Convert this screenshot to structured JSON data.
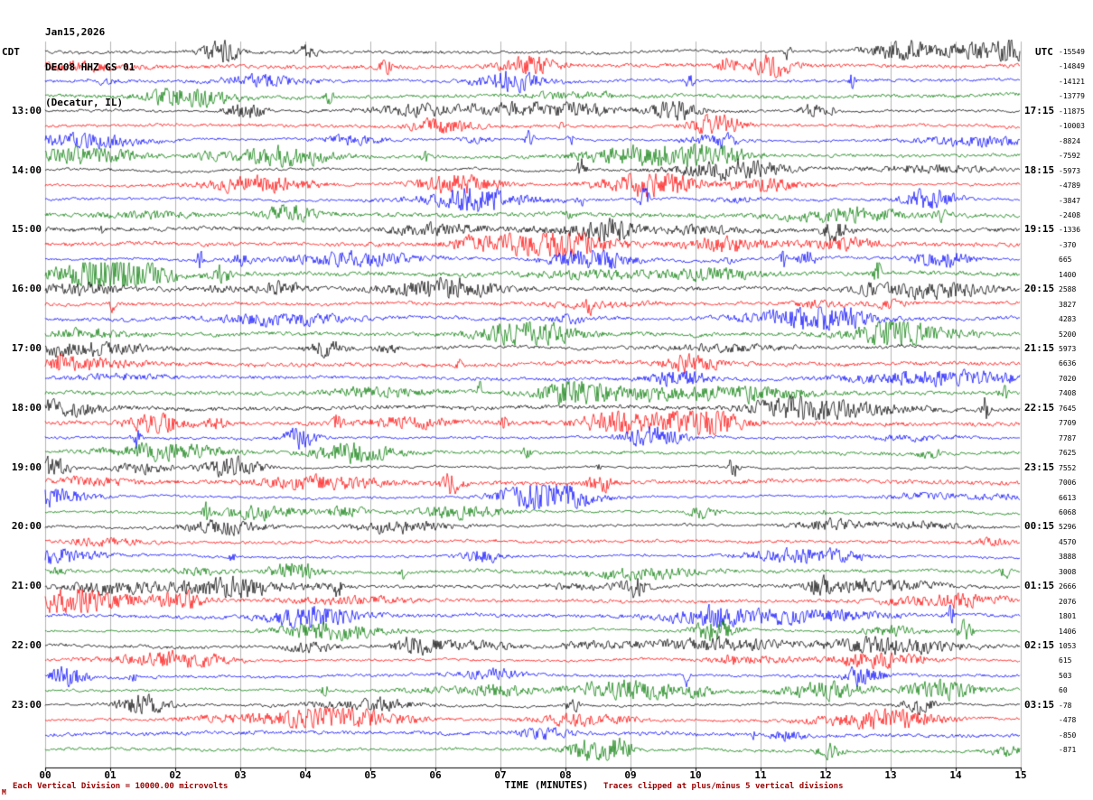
{
  "title": {
    "date": "Jan15,2026",
    "station": "DEC08 HHZ GS 01",
    "location": "(Decatur, IL)"
  },
  "axes": {
    "left_tz": "CDT",
    "right_tz": "UTC",
    "x_label": "TIME (MINUTES)"
  },
  "footer": {
    "left": "Each Vertical Division = 10000.00 microvolts",
    "right": "Traces clipped at plus/minus 5 vertical divisions",
    "mark": "M"
  },
  "chart_data": {
    "type": "line",
    "subtype": "helicorder-seismogram",
    "title": "DEC08 HHZ GS 01 (Decatur, IL) Jan15,2026",
    "xlabel": "TIME (MINUTES)",
    "x_range_minutes": [
      0,
      15
    ],
    "x_ticks": [
      "00",
      "01",
      "02",
      "03",
      "04",
      "05",
      "06",
      "07",
      "08",
      "09",
      "10",
      "11",
      "12",
      "13",
      "14",
      "15"
    ],
    "minutes_per_row": 15,
    "grid": "vertical-minute-lines",
    "vertical_division_microvolts": "10000.00",
    "clip_divisions": 5,
    "colors_cycle": [
      "#000000",
      "#ff0000",
      "#0000ff",
      "#007a00"
    ],
    "noise_seed": 20260115,
    "left_axis": {
      "timezone": "CDT",
      "hour_labels": [
        {
          "row": 4,
          "label": "13:00"
        },
        {
          "row": 8,
          "label": "14:00"
        },
        {
          "row": 12,
          "label": "15:00"
        },
        {
          "row": 16,
          "label": "16:00"
        },
        {
          "row": 20,
          "label": "17:00"
        },
        {
          "row": 24,
          "label": "18:00"
        },
        {
          "row": 28,
          "label": "19:00"
        },
        {
          "row": 32,
          "label": "20:00"
        },
        {
          "row": 36,
          "label": "21:00"
        },
        {
          "row": 40,
          "label": "22:00"
        },
        {
          "row": 44,
          "label": "23:00"
        }
      ]
    },
    "right_axis": {
      "timezone": "UTC",
      "hour_labels": [
        {
          "row": 4,
          "label": "17:15"
        },
        {
          "row": 8,
          "label": "18:15"
        },
        {
          "row": 12,
          "label": "19:15"
        },
        {
          "row": 16,
          "label": "20:15"
        },
        {
          "row": 20,
          "label": "21:15"
        },
        {
          "row": 24,
          "label": "22:15"
        },
        {
          "row": 28,
          "label": "23:15"
        },
        {
          "row": 32,
          "label": "00:15"
        },
        {
          "row": 36,
          "label": "01:15"
        },
        {
          "row": 40,
          "label": "02:15"
        },
        {
          "row": 44,
          "label": "03:15"
        }
      ]
    },
    "rows": [
      {
        "start_cdt": "12:00",
        "color": "#000000",
        "right_value": -15549
      },
      {
        "start_cdt": "12:15",
        "color": "#ff0000",
        "right_value": -14849
      },
      {
        "start_cdt": "12:30",
        "color": "#0000ff",
        "right_value": -14121
      },
      {
        "start_cdt": "12:45",
        "color": "#007a00",
        "right_value": -13779
      },
      {
        "start_cdt": "13:00",
        "color": "#000000",
        "right_value": -11875
      },
      {
        "start_cdt": "13:15",
        "color": "#ff0000",
        "right_value": -10003
      },
      {
        "start_cdt": "13:30",
        "color": "#0000ff",
        "right_value": -8824
      },
      {
        "start_cdt": "13:45",
        "color": "#007a00",
        "right_value": -7592
      },
      {
        "start_cdt": "14:00",
        "color": "#000000",
        "right_value": -5973
      },
      {
        "start_cdt": "14:15",
        "color": "#ff0000",
        "right_value": -4789
      },
      {
        "start_cdt": "14:30",
        "color": "#0000ff",
        "right_value": -3847
      },
      {
        "start_cdt": "14:45",
        "color": "#007a00",
        "right_value": -2408
      },
      {
        "start_cdt": "15:00",
        "color": "#000000",
        "right_value": -1336
      },
      {
        "start_cdt": "15:15",
        "color": "#ff0000",
        "right_value": -370
      },
      {
        "start_cdt": "15:30",
        "color": "#0000ff",
        "right_value": 665
      },
      {
        "start_cdt": "15:45",
        "color": "#007a00",
        "right_value": 1400
      },
      {
        "start_cdt": "16:00",
        "color": "#000000",
        "right_value": 2588
      },
      {
        "start_cdt": "16:15",
        "color": "#ff0000",
        "right_value": 3827
      },
      {
        "start_cdt": "16:30",
        "color": "#0000ff",
        "right_value": 4283
      },
      {
        "start_cdt": "16:45",
        "color": "#007a00",
        "right_value": 5200
      },
      {
        "start_cdt": "17:00",
        "color": "#000000",
        "right_value": 5973
      },
      {
        "start_cdt": "17:15",
        "color": "#ff0000",
        "right_value": 6636
      },
      {
        "start_cdt": "17:30",
        "color": "#0000ff",
        "right_value": 7020
      },
      {
        "start_cdt": "17:45",
        "color": "#007a00",
        "right_value": 7408
      },
      {
        "start_cdt": "18:00",
        "color": "#000000",
        "right_value": 7645
      },
      {
        "start_cdt": "18:15",
        "color": "#ff0000",
        "right_value": 7709
      },
      {
        "start_cdt": "18:30",
        "color": "#0000ff",
        "right_value": 7787
      },
      {
        "start_cdt": "18:45",
        "color": "#007a00",
        "right_value": 7625
      },
      {
        "start_cdt": "19:00",
        "color": "#000000",
        "right_value": 7552
      },
      {
        "start_cdt": "19:15",
        "color": "#ff0000",
        "right_value": 7006
      },
      {
        "start_cdt": "19:30",
        "color": "#0000ff",
        "right_value": 6613
      },
      {
        "start_cdt": "19:45",
        "color": "#007a00",
        "right_value": 6068
      },
      {
        "start_cdt": "20:00",
        "color": "#000000",
        "right_value": 5296
      },
      {
        "start_cdt": "20:15",
        "color": "#ff0000",
        "right_value": 4570
      },
      {
        "start_cdt": "20:30",
        "color": "#0000ff",
        "right_value": 3888
      },
      {
        "start_cdt": "20:45",
        "color": "#007a00",
        "right_value": 3008
      },
      {
        "start_cdt": "21:00",
        "color": "#000000",
        "right_value": 2666
      },
      {
        "start_cdt": "21:15",
        "color": "#ff0000",
        "right_value": 2076
      },
      {
        "start_cdt": "21:30",
        "color": "#0000ff",
        "right_value": 1801
      },
      {
        "start_cdt": "21:45",
        "color": "#007a00",
        "right_value": 1406
      },
      {
        "start_cdt": "22:00",
        "color": "#000000",
        "right_value": 1053
      },
      {
        "start_cdt": "22:15",
        "color": "#ff0000",
        "right_value": 615
      },
      {
        "start_cdt": "22:30",
        "color": "#0000ff",
        "right_value": 503
      },
      {
        "start_cdt": "22:45",
        "color": "#007a00",
        "right_value": 60
      },
      {
        "start_cdt": "23:00",
        "color": "#000000",
        "right_value": -78
      },
      {
        "start_cdt": "23:15",
        "color": "#ff0000",
        "right_value": -478
      },
      {
        "start_cdt": "23:30",
        "color": "#0000ff",
        "right_value": -850
      },
      {
        "start_cdt": "23:45",
        "color": "#007a00",
        "right_value": -871
      }
    ]
  }
}
